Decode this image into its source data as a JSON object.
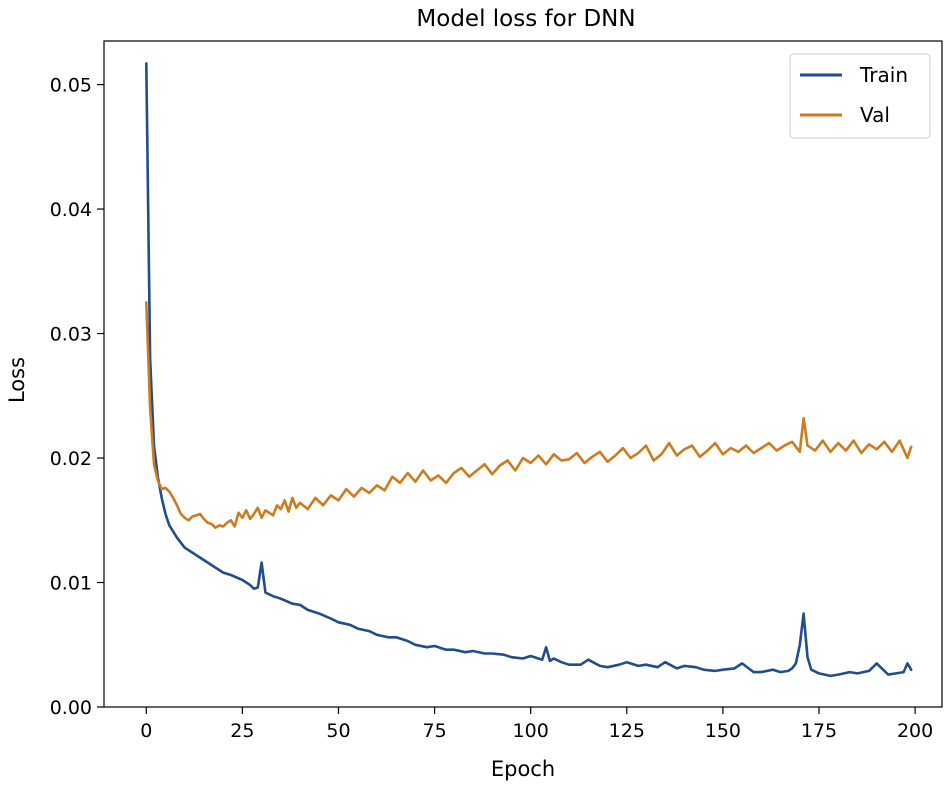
{
  "chart_data": {
    "type": "line",
    "title": "Model loss for DNN",
    "xlabel": "Epoch",
    "ylabel": "Loss",
    "xlim": [
      -11,
      207
    ],
    "ylim": [
      0.0,
      0.0535
    ],
    "xticks": [
      0,
      25,
      50,
      75,
      100,
      125,
      150,
      175,
      200
    ],
    "xtick_labels": [
      "0",
      "25",
      "50",
      "75",
      "100",
      "125",
      "150",
      "175",
      "200"
    ],
    "yticks": [
      0.0,
      0.01,
      0.02,
      0.03,
      0.04,
      0.05
    ],
    "ytick_labels": [
      "0.00",
      "0.01",
      "0.02",
      "0.03",
      "0.04",
      "0.05"
    ],
    "grid": false,
    "legend_position": "top-right",
    "series": [
      {
        "name": "Train",
        "color": "#1f4e8c",
        "x": [
          0,
          1,
          2,
          3,
          4,
          5,
          6,
          8,
          10,
          12,
          15,
          18,
          20,
          22,
          25,
          27,
          28,
          29,
          30,
          31,
          33,
          35,
          38,
          40,
          42,
          45,
          48,
          50,
          53,
          55,
          58,
          60,
          63,
          65,
          68,
          70,
          73,
          75,
          78,
          80,
          83,
          85,
          88,
          90,
          93,
          95,
          98,
          100,
          103,
          104,
          105,
          106,
          108,
          110,
          113,
          115,
          118,
          120,
          123,
          125,
          128,
          130,
          133,
          135,
          138,
          140,
          143,
          145,
          148,
          150,
          153,
          155,
          158,
          160,
          163,
          165,
          167,
          168,
          169,
          170,
          171,
          172,
          173,
          175,
          178,
          180,
          183,
          185,
          188,
          190,
          193,
          195,
          197,
          198,
          199
        ],
        "values": [
          0.0517,
          0.028,
          0.021,
          0.0185,
          0.0168,
          0.0155,
          0.0146,
          0.0136,
          0.0128,
          0.0124,
          0.0118,
          0.0112,
          0.0108,
          0.0106,
          0.0102,
          0.0098,
          0.0095,
          0.0096,
          0.0116,
          0.0092,
          0.0089,
          0.0087,
          0.0083,
          0.0082,
          0.0078,
          0.0075,
          0.0071,
          0.0068,
          0.0066,
          0.0063,
          0.0061,
          0.0058,
          0.0056,
          0.0056,
          0.0053,
          0.005,
          0.0048,
          0.0049,
          0.0046,
          0.0046,
          0.0044,
          0.0045,
          0.0043,
          0.0043,
          0.0042,
          0.004,
          0.0039,
          0.0041,
          0.0038,
          0.0048,
          0.0037,
          0.0039,
          0.0036,
          0.0034,
          0.0034,
          0.0038,
          0.0033,
          0.0032,
          0.0034,
          0.0036,
          0.0033,
          0.0034,
          0.0032,
          0.0036,
          0.0031,
          0.0033,
          0.0032,
          0.003,
          0.0029,
          0.003,
          0.0031,
          0.0035,
          0.0028,
          0.0028,
          0.003,
          0.0028,
          0.0029,
          0.0031,
          0.0035,
          0.005,
          0.0075,
          0.004,
          0.003,
          0.0027,
          0.0025,
          0.0026,
          0.0028,
          0.0027,
          0.0029,
          0.0035,
          0.0026,
          0.0027,
          0.0028,
          0.0035,
          0.003
        ]
      },
      {
        "name": "Val",
        "color": "#d07a1e",
        "x": [
          0,
          1,
          2,
          3,
          4,
          5,
          6,
          7,
          8,
          9,
          10,
          11,
          12,
          13,
          14,
          15,
          16,
          17,
          18,
          19,
          20,
          21,
          22,
          23,
          24,
          25,
          26,
          27,
          28,
          29,
          30,
          31,
          32,
          33,
          34,
          35,
          36,
          37,
          38,
          39,
          40,
          42,
          44,
          46,
          48,
          50,
          52,
          54,
          56,
          58,
          60,
          62,
          64,
          66,
          68,
          70,
          72,
          74,
          76,
          78,
          80,
          82,
          84,
          86,
          88,
          90,
          92,
          94,
          96,
          98,
          100,
          102,
          104,
          106,
          108,
          110,
          112,
          114,
          116,
          118,
          120,
          122,
          124,
          126,
          128,
          130,
          132,
          134,
          136,
          138,
          140,
          142,
          144,
          146,
          148,
          150,
          152,
          154,
          156,
          158,
          160,
          162,
          164,
          166,
          168,
          170,
          171,
          172,
          174,
          176,
          178,
          180,
          182,
          184,
          186,
          188,
          190,
          192,
          194,
          196,
          198,
          199
        ],
        "values": [
          0.0325,
          0.024,
          0.0195,
          0.0182,
          0.0175,
          0.0176,
          0.0173,
          0.0168,
          0.0162,
          0.0155,
          0.0152,
          0.015,
          0.0153,
          0.0154,
          0.0155,
          0.0151,
          0.0148,
          0.0147,
          0.0144,
          0.0146,
          0.0145,
          0.0148,
          0.015,
          0.0145,
          0.0156,
          0.0152,
          0.0158,
          0.0151,
          0.0155,
          0.016,
          0.0152,
          0.0158,
          0.0156,
          0.0154,
          0.0162,
          0.0159,
          0.0166,
          0.0157,
          0.0168,
          0.016,
          0.0164,
          0.0159,
          0.0168,
          0.0162,
          0.017,
          0.0166,
          0.0175,
          0.0169,
          0.0176,
          0.0172,
          0.0178,
          0.0174,
          0.0185,
          0.018,
          0.0188,
          0.0181,
          0.019,
          0.0182,
          0.0186,
          0.018,
          0.0188,
          0.0192,
          0.0185,
          0.019,
          0.0195,
          0.0187,
          0.0194,
          0.0198,
          0.019,
          0.02,
          0.0196,
          0.0202,
          0.0195,
          0.0203,
          0.0198,
          0.0199,
          0.0204,
          0.0196,
          0.0201,
          0.0205,
          0.0197,
          0.0202,
          0.0208,
          0.02,
          0.0204,
          0.021,
          0.0198,
          0.0203,
          0.0212,
          0.0202,
          0.0207,
          0.021,
          0.0201,
          0.0206,
          0.0212,
          0.0203,
          0.0208,
          0.0205,
          0.021,
          0.0204,
          0.0208,
          0.0212,
          0.0206,
          0.021,
          0.0213,
          0.0205,
          0.0232,
          0.021,
          0.0206,
          0.0214,
          0.0205,
          0.0212,
          0.0206,
          0.0214,
          0.0204,
          0.0211,
          0.0207,
          0.0213,
          0.0205,
          0.0214,
          0.02,
          0.0209
        ]
      }
    ]
  }
}
